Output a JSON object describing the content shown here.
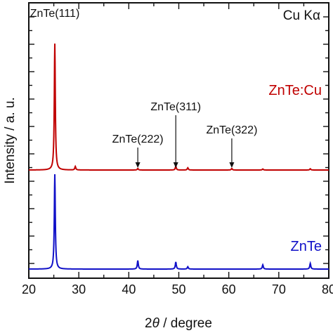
{
  "chart_data": {
    "type": "line",
    "xlabel_prefix": "2",
    "xlabel_symbol": "θ",
    "xlabel_suffix": " / degree",
    "ylabel": "Intensity / a. u.",
    "xlim": [
      20,
      80
    ],
    "x_ticks": [
      20,
      30,
      40,
      50,
      60,
      70,
      80
    ],
    "corner_label": "Cu Kα",
    "series": [
      {
        "name": "ZnTe:Cu",
        "color": "#c00000",
        "peaks": [
          {
            "x": 25.2,
            "h": 1.0
          },
          {
            "x": 29.3,
            "h": 0.028
          },
          {
            "x": 41.8,
            "h": 0.012
          },
          {
            "x": 49.4,
            "h": 0.03
          },
          {
            "x": 51.8,
            "h": 0.018
          },
          {
            "x": 60.6,
            "h": 0.012
          },
          {
            "x": 66.8,
            "h": 0.008
          },
          {
            "x": 76.3,
            "h": 0.01
          }
        ]
      },
      {
        "name": "ZnTe",
        "color": "#1010c8",
        "peaks": [
          {
            "x": 25.2,
            "h": 1.0
          },
          {
            "x": 41.8,
            "h": 0.09
          },
          {
            "x": 49.4,
            "h": 0.075
          },
          {
            "x": 51.8,
            "h": 0.025
          },
          {
            "x": 66.8,
            "h": 0.045
          },
          {
            "x": 76.3,
            "h": 0.06
          }
        ]
      }
    ],
    "annotations": [
      {
        "text": "ZnTe(111)",
        "x": 25.2,
        "arrow": false
      },
      {
        "text": "ZnTe(222)",
        "x": 41.8,
        "arrow": true
      },
      {
        "text": "ZnTe(311)",
        "x": 49.4,
        "arrow": true
      },
      {
        "text": "ZnTe(322)",
        "x": 60.6,
        "arrow": true
      }
    ]
  }
}
